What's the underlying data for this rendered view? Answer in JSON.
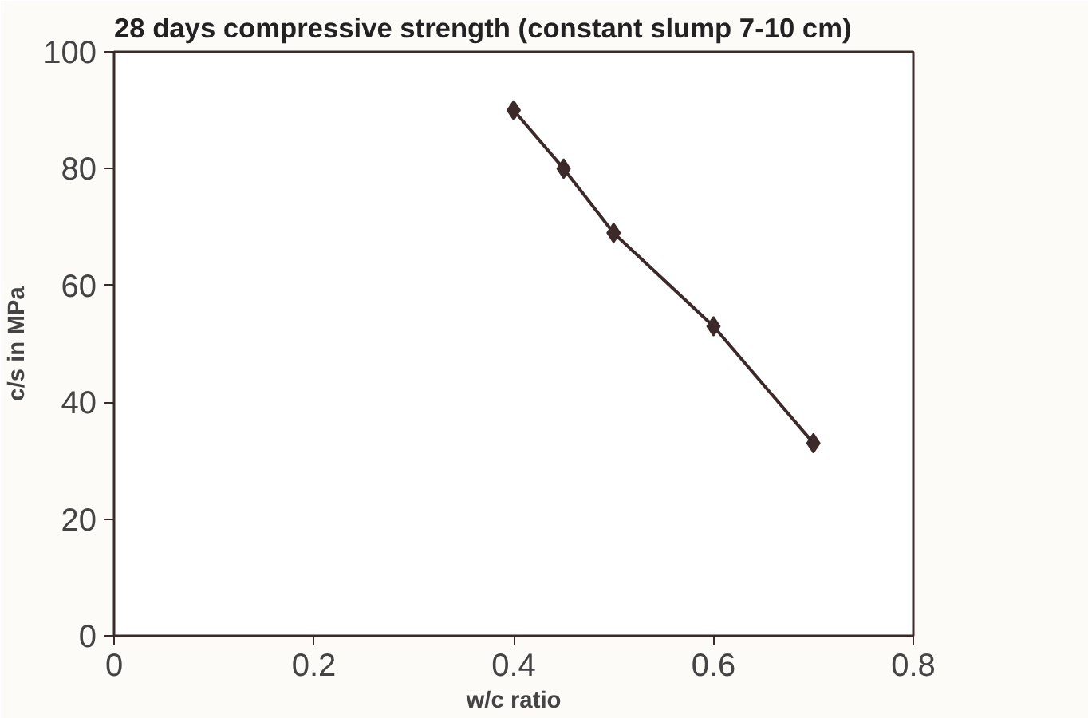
{
  "chart_data": {
    "type": "line",
    "title": "28 days compressive strength (constant slump 7-10 cm)",
    "xlabel": "w/c ratio",
    "ylabel": "c/s in MPa",
    "x": [
      0.4,
      0.45,
      0.5,
      0.6,
      0.7
    ],
    "series": [
      {
        "color": "#3c2a2a",
        "values": [
          90,
          80,
          69,
          53,
          33
        ]
      }
    ],
    "xlim": [
      0,
      0.8
    ],
    "xticks": [
      0,
      0.2,
      0.4,
      0.6,
      0.8
    ],
    "ylim": [
      0,
      100
    ],
    "yticks": [
      0,
      20,
      40,
      60,
      80,
      100
    ],
    "grid": false,
    "marker": "diamond",
    "line_style": "solid"
  }
}
